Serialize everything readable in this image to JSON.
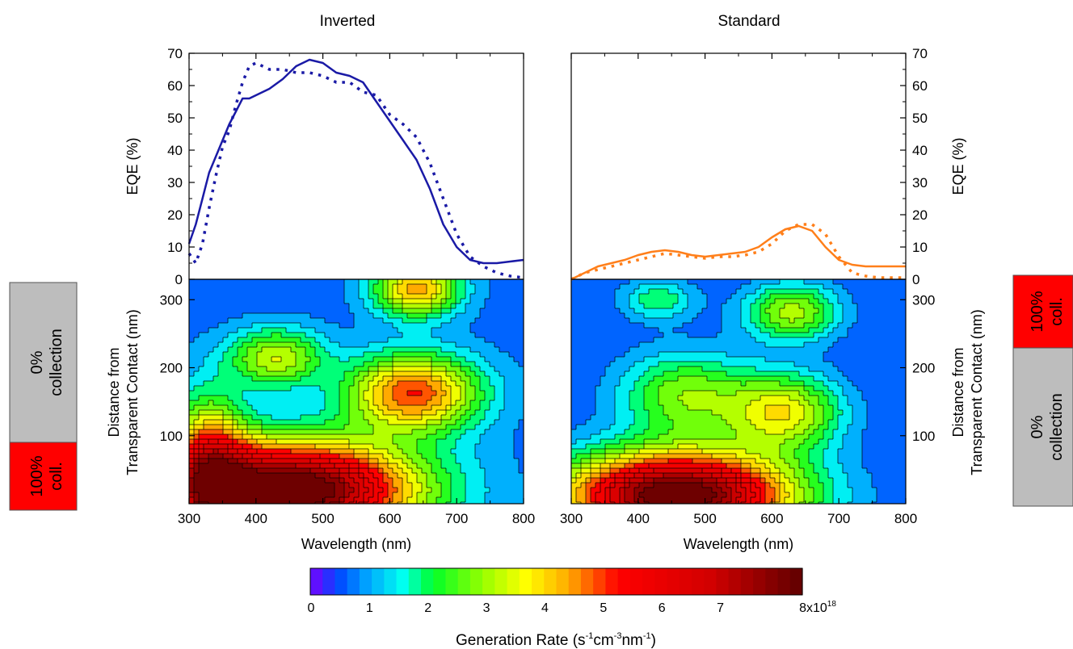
{
  "chart_data": [
    {
      "type": "line",
      "title": "Inverted",
      "xlabel": "Wavelength (nm)",
      "ylabel": "EQE (%)",
      "xlim": [
        300,
        800
      ],
      "ylim": [
        0,
        70
      ],
      "xticks": [
        "300",
        "400",
        "500",
        "600",
        "700",
        "800"
      ],
      "yticks": [
        "0",
        "10",
        "20",
        "30",
        "40",
        "50",
        "60",
        "70"
      ],
      "color": "#1a1aa6",
      "series": [
        {
          "style": "solid",
          "x": [
            300,
            310,
            320,
            330,
            340,
            350,
            360,
            370,
            380,
            390,
            400,
            420,
            440,
            460,
            480,
            500,
            520,
            540,
            560,
            580,
            600,
            620,
            640,
            660,
            680,
            700,
            720,
            740,
            760,
            780,
            800
          ],
          "y": [
            11,
            17,
            25,
            33,
            38,
            43,
            48,
            52,
            56,
            56,
            57,
            59,
            62,
            66,
            68,
            67,
            64,
            63,
            61,
            55,
            49,
            43,
            37,
            28,
            17,
            10,
            6,
            5,
            5,
            5.5,
            6
          ]
        },
        {
          "style": "dotted",
          "x": [
            300,
            310,
            320,
            330,
            340,
            350,
            360,
            370,
            380,
            390,
            400,
            420,
            440,
            460,
            480,
            500,
            520,
            540,
            560,
            580,
            600,
            620,
            640,
            660,
            680,
            700,
            720,
            740,
            760,
            780,
            800
          ],
          "y": [
            8,
            5,
            11,
            22,
            32,
            41,
            46,
            54,
            61,
            66,
            67,
            65,
            65,
            64,
            64,
            63,
            61,
            61,
            58,
            57,
            51,
            48,
            44,
            36,
            25,
            14,
            7,
            4,
            2,
            1,
            0.5
          ]
        }
      ]
    },
    {
      "type": "line",
      "title": "Standard",
      "xlabel": "Wavelength (nm)",
      "ylabel": "EQE (%)",
      "xlim": [
        300,
        800
      ],
      "ylim": [
        0,
        70
      ],
      "xticks": [
        "300",
        "400",
        "500",
        "600",
        "700",
        "800"
      ],
      "yticks": [
        "0",
        "10",
        "20",
        "30",
        "40",
        "50",
        "60",
        "70"
      ],
      "color": "#ff7f1a",
      "series": [
        {
          "style": "solid",
          "x": [
            300,
            320,
            340,
            360,
            380,
            400,
            420,
            440,
            460,
            480,
            500,
            520,
            540,
            560,
            580,
            600,
            620,
            640,
            660,
            680,
            700,
            720,
            740,
            760,
            780,
            800
          ],
          "y": [
            0,
            2,
            4,
            5,
            6,
            7.5,
            8.5,
            9,
            8.5,
            7.5,
            7,
            7.5,
            8,
            8.5,
            10,
            13,
            15.5,
            16.5,
            15,
            10,
            6,
            4.5,
            4,
            4,
            4,
            4
          ]
        },
        {
          "style": "dotted",
          "x": [
            300,
            320,
            340,
            360,
            380,
            400,
            420,
            440,
            460,
            480,
            500,
            520,
            540,
            560,
            580,
            600,
            620,
            640,
            660,
            680,
            700,
            720,
            740,
            760,
            780,
            800
          ],
          "y": [
            0,
            2,
            3,
            4,
            5,
            6,
            7,
            8,
            7.5,
            7,
            6.5,
            7,
            7,
            7.5,
            8.5,
            11,
            15,
            17,
            17,
            14,
            7,
            2,
            1,
            0.5,
            0.5,
            0.5
          ]
        }
      ]
    },
    {
      "type": "heatmap",
      "title": "Inverted",
      "xlabel": "Wavelength (nm)",
      "ylabel": "Distance from Transparent Contact (nm)",
      "xlim": [
        300,
        800
      ],
      "ylim": [
        0,
        330
      ],
      "xticks": [
        "300",
        "400",
        "500",
        "600",
        "700",
        "800"
      ],
      "yticks": [
        "100",
        "200",
        "300"
      ],
      "hotspots": [
        {
          "x": 640,
          "y": 315,
          "v": 3.6,
          "sx": 45,
          "sy": 28
        },
        {
          "x": 635,
          "y": 163,
          "v": 4.2,
          "sx": 70,
          "sy": 40
        },
        {
          "x": 430,
          "y": 215,
          "v": 2.6,
          "sx": 50,
          "sy": 30
        },
        {
          "x": 450,
          "y": 20,
          "v": 8,
          "sx": 130,
          "sy": 50
        },
        {
          "x": 330,
          "y": 60,
          "v": 3.5,
          "sx": 40,
          "sy": 70
        }
      ]
    },
    {
      "type": "heatmap",
      "title": "Standard",
      "xlabel": "Wavelength (nm)",
      "ylabel": "Distance from Transparent Contact (nm)",
      "xlim": [
        300,
        800
      ],
      "ylim": [
        0,
        330
      ],
      "xticks": [
        "300",
        "400",
        "500",
        "600",
        "700",
        "800"
      ],
      "yticks": [
        "100",
        "200",
        "300"
      ],
      "hotspots": [
        {
          "x": 630,
          "y": 282,
          "v": 2.6,
          "sx": 50,
          "sy": 30
        },
        {
          "x": 430,
          "y": 300,
          "v": 1.5,
          "sx": 40,
          "sy": 22
        },
        {
          "x": 620,
          "y": 135,
          "v": 3.0,
          "sx": 60,
          "sy": 40
        },
        {
          "x": 470,
          "y": 160,
          "v": 2.3,
          "sx": 70,
          "sy": 45
        },
        {
          "x": 460,
          "y": 12,
          "v": 8,
          "sx": 120,
          "sy": 45
        }
      ]
    }
  ],
  "side_bars": {
    "left": {
      "top_label_1": "0%",
      "top_label_2": "collection",
      "bottom_label_1": "100%",
      "bottom_label_2": "coll."
    },
    "right": {
      "top_label_1": "100%",
      "top_label_2": "coll.",
      "bottom_label_1": "0%",
      "bottom_label_2": "collection"
    }
  },
  "colorbar": {
    "title": "Generation Rate (s-1cm-3nm-1)",
    "title_parts": [
      "Generation Rate (s",
      "-1",
      "cm",
      "-3",
      "nm",
      "-1",
      ")"
    ],
    "ticks": [
      "0",
      "1",
      "2",
      "3",
      "4",
      "5",
      "6",
      "7"
    ],
    "max_label": "8x10",
    "max_exponent": "18",
    "range": [
      0,
      8
    ],
    "colors": {
      "gray": "#bdbdbd",
      "red": "#ff0000",
      "inverted_line": "#1a1aa6",
      "standard_line": "#ff7f1a"
    }
  }
}
